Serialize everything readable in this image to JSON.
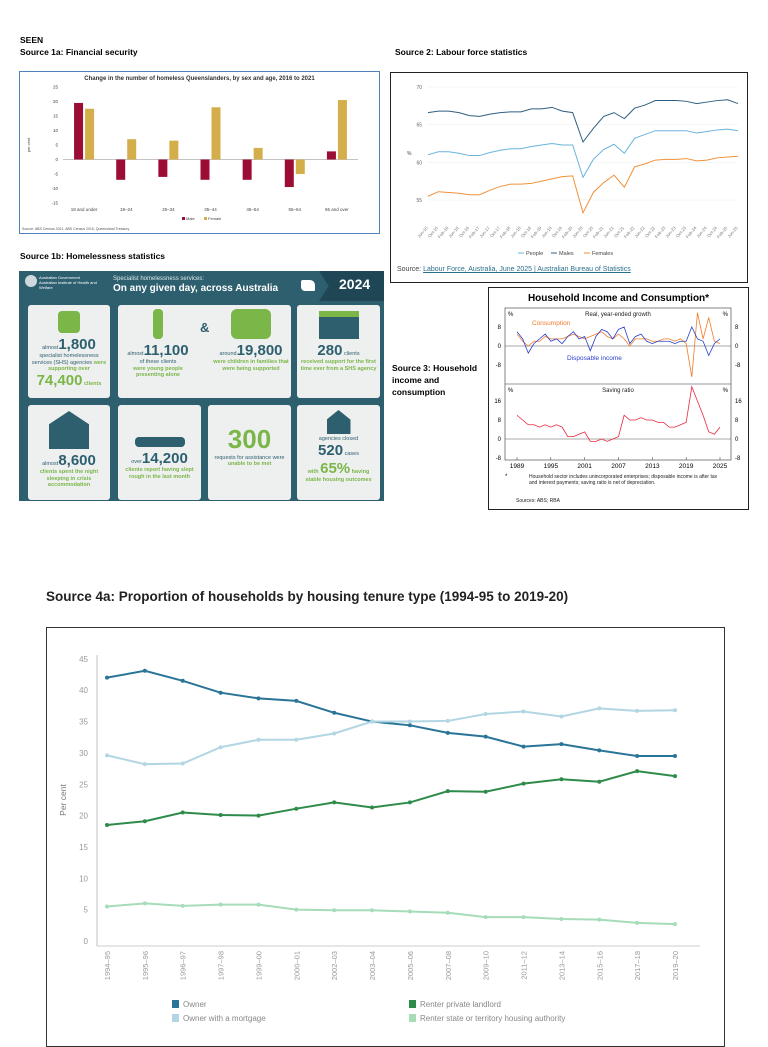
{
  "header": {
    "seen": "SEEN",
    "source1a": "Source 1a: Financial security",
    "source1b": "Source 1b: Homelessness statistics",
    "source2": "Source 2: Labour force statistics",
    "source3": "Source 3: Household income and consumption",
    "source4a": "Source 4a: Proportion of households by housing tenure type (1994-95 to 2019-20)"
  },
  "infographic": {
    "gov": "Australian Government",
    "aihw": "Australian Institute of Health and Welfare",
    "subtitle": "Specialist homelessness services:",
    "title": "On any given day, across Australia",
    "year": "2024",
    "amp": "&",
    "tiles": [
      {
        "pre": "almost",
        "num": "1,800",
        "text": "specialist homelessness services (SHS) agencies",
        "green": "were supporting over",
        "num2": "74,400",
        "post": "clients"
      },
      {
        "pre": "almost",
        "num": "11,100",
        "text": "of these clients",
        "green": "were young people presenting alone"
      },
      {
        "pre": "around",
        "num": "19,800",
        "green": "were children in families that were being supported"
      },
      {
        "num": "280",
        "text": "clients",
        "green": "received support for the first time ever from a SHS agency"
      },
      {
        "pre": "almost",
        "num": "8,600",
        "green": "clients spent the night sleeping in crisis accommodation"
      },
      {
        "pre": "over",
        "num": "14,200",
        "green": "clients report having slept rough in the last month"
      },
      {
        "num": "300",
        "text": "requests for assistance were",
        "green": "unable to be met"
      },
      {
        "text": "agencies closed",
        "num": "520",
        "post": "cases",
        "green": "with",
        "num2": "65%",
        "green2": "having stable housing outcomes"
      }
    ]
  },
  "chart_data": [
    {
      "id": "1a",
      "type": "bar",
      "title": "Change in the number of homeless Queenslanders, by sex and age, 2016 to 2021",
      "ylabel": "per cent",
      "ylim": [
        -15,
        25
      ],
      "yticks": [
        25,
        20,
        15,
        10,
        5,
        0,
        -5,
        -10,
        -15
      ],
      "categories": [
        "18 and under",
        "19–24",
        "25–34",
        "35–44",
        "45–54",
        "55–64",
        "65 and over"
      ],
      "series": [
        {
          "name": "Male",
          "color": "#9b0d35",
          "values": [
            19.5,
            -7,
            -6,
            -7,
            -7,
            -9.5,
            2.8
          ]
        },
        {
          "name": "Female",
          "color": "#d4ae4a",
          "values": [
            17.5,
            7,
            6.5,
            18,
            4,
            -5,
            20.5
          ]
        }
      ],
      "source": "Source: ABS Census 2021, ABS Census 2016, Queensland Treasury",
      "legend": "bottom"
    },
    {
      "id": "2",
      "type": "line",
      "ylabel": "%",
      "ylim": [
        53,
        70
      ],
      "yticks": [
        70,
        65,
        60,
        55
      ],
      "legend": "bottom",
      "x": [
        "Jun-15",
        "Oct-15",
        "Feb-16",
        "Jun-16",
        "Oct-16",
        "Feb-17",
        "Jun-17",
        "Oct-17",
        "Feb-18",
        "Jun-18",
        "Oct-18",
        "Feb-19",
        "Jun-19",
        "Oct-19",
        "Feb-20",
        "Jun-20",
        "Oct-20",
        "Feb-21",
        "Jun-21",
        "Oct-21",
        "Feb-22",
        "Jun-22",
        "Oct-22",
        "Feb-23",
        "Jun-23",
        "Oct-23",
        "Feb-24",
        "Jun-24",
        "Oct-24",
        "Feb-25",
        "Jun-25"
      ],
      "series": [
        {
          "name": "People",
          "color": "#6ab4dc",
          "values": [
            61.0,
            61.4,
            61.4,
            61.2,
            60.9,
            60.9,
            61.3,
            61.6,
            61.8,
            61.8,
            62.1,
            62.3,
            62.5,
            62.3,
            62.3,
            58.0,
            60.4,
            61.7,
            62.4,
            61.2,
            63.2,
            63.7,
            64.2,
            64.2,
            64.2,
            64.2,
            63.9,
            64.1,
            64.3,
            64.4,
            64.2
          ]
        },
        {
          "name": "Males",
          "color": "#2f5f80",
          "values": [
            66.6,
            66.8,
            66.8,
            66.6,
            66.2,
            66.1,
            66.4,
            66.6,
            66.7,
            66.7,
            67.1,
            67.1,
            67.3,
            66.8,
            66.6,
            62.7,
            64.5,
            66.1,
            66.6,
            65.8,
            67.2,
            67.6,
            68.2,
            68.2,
            68.2,
            68.1,
            67.8,
            68.0,
            68.2,
            68.3,
            67.8
          ]
        },
        {
          "name": "Females",
          "color": "#f0913a",
          "values": [
            55.5,
            56.1,
            56.0,
            55.9,
            55.7,
            55.7,
            56.3,
            56.8,
            57.1,
            57.1,
            57.2,
            57.5,
            57.8,
            58.1,
            58.2,
            53.3,
            56.0,
            57.3,
            58.3,
            56.7,
            59.4,
            59.8,
            60.3,
            60.4,
            60.4,
            60.5,
            60.2,
            60.3,
            60.6,
            60.7,
            60.8
          ]
        }
      ],
      "source_label": "Source:",
      "source_link": "Labour Force, Australia, June 2025 | Australian Bureau of Statistics"
    },
    {
      "id": "3",
      "type": "line",
      "title": "Household Income and Consumption*",
      "panels": [
        {
          "title": "Real, year-ended growth",
          "unit": "%",
          "ylim": [
            -16,
            8
          ],
          "yticks": [
            8,
            0,
            -8
          ],
          "series": [
            {
              "name": "Consumption",
              "color": "#f07c2a",
              "values": [
                5,
                2,
                0,
                2,
                2,
                4,
                3,
                3,
                3,
                4,
                5,
                4,
                3,
                4,
                5,
                6,
                4,
                3,
                5,
                3,
                0,
                3,
                3,
                3,
                2,
                2,
                3,
                3,
                2,
                3,
                1,
                -13,
                14,
                3,
                12,
                2,
                1
              ]
            },
            {
              "name": "Disposable income",
              "color": "#2a3fc8",
              "values": [
                6,
                3,
                -3,
                1,
                3,
                5,
                2,
                3,
                1,
                4,
                6,
                3,
                4,
                -2,
                4,
                7,
                6,
                3,
                7,
                8,
                1,
                4,
                5,
                2,
                1,
                2,
                2,
                2,
                1,
                2,
                2,
                8,
                3,
                2,
                -4,
                1,
                3
              ]
            }
          ]
        },
        {
          "title": "Saving ratio",
          "unit": "%",
          "ylim": [
            -8,
            24
          ],
          "yticks": [
            16,
            8,
            0,
            -8
          ],
          "series": [
            {
              "name": "Saving ratio",
              "color": "#e8283c",
              "values": [
                10,
                8,
                6,
                6,
                5,
                6,
                5,
                6,
                5,
                1,
                1,
                2,
                3,
                -1,
                -1,
                0,
                -1,
                0,
                1,
                10,
                8,
                8,
                9,
                8,
                8,
                7,
                7,
                5,
                5,
                6,
                7,
                22,
                16,
                10,
                3,
                2,
                5
              ]
            }
          ]
        }
      ],
      "x_start": 1989,
      "x_end": 2025,
      "xticks": [
        1989,
        1995,
        2001,
        2007,
        2013,
        2019,
        2025
      ],
      "footnote_mark": "*",
      "footnote": "Household sector includes unincorporated enterprises; disposable income is after tax and interest payments; saving ratio is net of depreciation.",
      "sources": "Sources: ABS; RBA"
    },
    {
      "id": "4a",
      "type": "line",
      "ylabel": "Per cent",
      "ylim": [
        0,
        45
      ],
      "yticks": [
        45,
        40,
        35,
        30,
        25,
        20,
        15,
        10,
        5,
        0
      ],
      "legend": "bottom",
      "categories": [
        "1994–95",
        "1995–96",
        "1996–97",
        "1997–98",
        "1999–00",
        "2000–01",
        "2002–03",
        "2003–04",
        "2005–06",
        "2007–08",
        "2009–10",
        "2011–12",
        "2013–14",
        "2015–16",
        "2017–18",
        "2019–20"
      ],
      "series": [
        {
          "name": "Owner",
          "color": "#2a7597",
          "values": [
            42,
            43.1,
            41.5,
            39.6,
            38.7,
            38.3,
            36.4,
            35,
            34.4,
            33.2,
            32.6,
            31,
            31.4,
            30.4,
            29.5,
            29.5
          ]
        },
        {
          "name": "Owner with a mortgage",
          "color": "#b2d6e3",
          "values": [
            29.6,
            28.2,
            28.3,
            30.9,
            32.1,
            32.1,
            33.1,
            35,
            35,
            35.1,
            36.2,
            36.6,
            35.8,
            37.1,
            36.7,
            36.8
          ]
        },
        {
          "name": "Renter private landlord",
          "color": "#2e8b4a",
          "values": [
            18.5,
            19.1,
            20.5,
            20.1,
            20,
            21.1,
            22.1,
            21.3,
            22.1,
            23.9,
            23.8,
            25.1,
            25.8,
            25.4,
            27.1,
            26.3
          ]
        },
        {
          "name": "Renter state or territory housing authority",
          "color": "#a6dcb8",
          "values": [
            5.5,
            6,
            5.6,
            5.8,
            5.8,
            5,
            4.9,
            4.9,
            4.7,
            4.5,
            3.8,
            3.8,
            3.5,
            3.4,
            2.9,
            2.7
          ]
        }
      ]
    }
  ]
}
